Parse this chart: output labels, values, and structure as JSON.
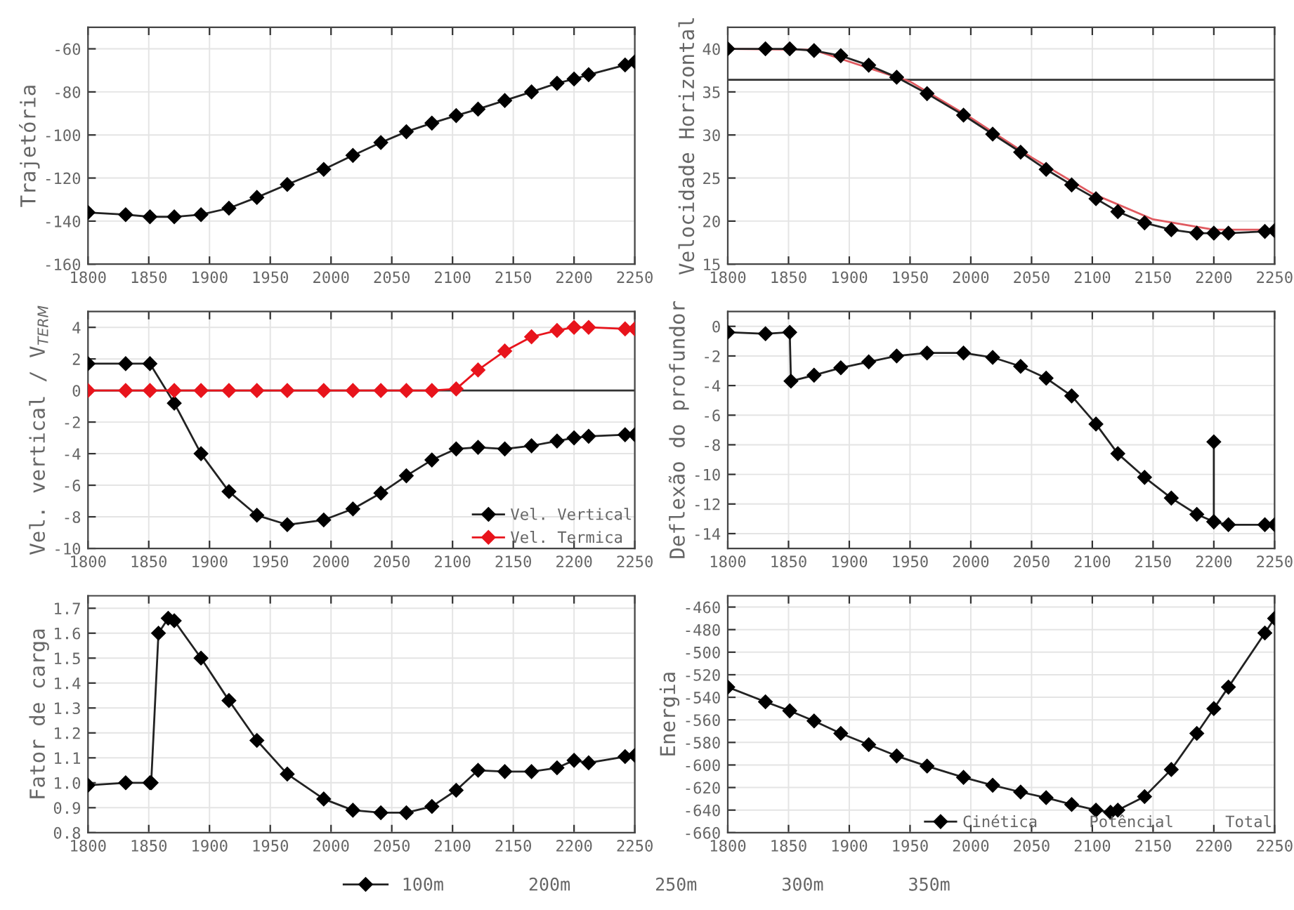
{
  "chart_data": [
    {
      "type": "line",
      "ylabel": "Trajetória",
      "xlim": [
        1800,
        2250
      ],
      "xticks": [
        1800,
        1850,
        1900,
        1950,
        2000,
        2050,
        2100,
        2150,
        2200,
        2250
      ],
      "ylim": [
        -160,
        -50
      ],
      "yticks": [
        -160,
        -140,
        -120,
        -100,
        -80,
        -60
      ],
      "grid": true,
      "legend": false,
      "series": [
        {
          "color": "#222222",
          "marker": "diamond",
          "x": [
            1800,
            1831,
            1851,
            1871,
            1893,
            1916,
            1939,
            1964,
            1994,
            2018,
            2041,
            2062,
            2083,
            2103,
            2121,
            2143,
            2165,
            2186,
            2200,
            2212,
            2242,
            2250
          ],
          "values": [
            -136,
            -137,
            -138,
            -138,
            -137,
            -134,
            -129,
            -123,
            -116,
            -109.5,
            -103.5,
            -98.5,
            -94.5,
            -91,
            -88,
            -84,
            -80,
            -76,
            -74,
            -72,
            -67.5,
            -66
          ]
        }
      ]
    },
    {
      "type": "line",
      "ylabel": "Velocidade Horizontal",
      "xlim": [
        1800,
        2250
      ],
      "xticks": [
        1800,
        1850,
        1900,
        1950,
        2000,
        2050,
        2100,
        2150,
        2200,
        2250
      ],
      "ylim": [
        15,
        42.5
      ],
      "yticks": [
        15,
        20,
        25,
        30,
        35,
        40
      ],
      "grid": true,
      "legend": false,
      "ref_lines": [
        {
          "axis": "y",
          "value": 36.4,
          "color": "#333333"
        }
      ],
      "series": [
        {
          "color": "#e05a60",
          "marker": "none",
          "x": [
            1800,
            1870,
            1950,
            2000,
            2050,
            2100,
            2150,
            2200,
            2250
          ],
          "values": [
            40,
            39.9,
            36.2,
            32,
            27.4,
            23.2,
            20.2,
            19.0,
            19.0
          ]
        },
        {
          "color": "#222222",
          "marker": "diamond",
          "x": [
            1800,
            1831,
            1851,
            1871,
            1893,
            1916,
            1939,
            1964,
            1994,
            2018,
            2041,
            2062,
            2083,
            2103,
            2121,
            2143,
            2165,
            2186,
            2200,
            2212,
            2242,
            2250
          ],
          "values": [
            40,
            40,
            40,
            39.8,
            39.2,
            38.1,
            36.7,
            34.8,
            32.3,
            30.1,
            28,
            26,
            24.2,
            22.6,
            21.1,
            19.8,
            19,
            18.6,
            18.6,
            18.6,
            18.8,
            18.9
          ]
        }
      ]
    },
    {
      "type": "line",
      "ylabel": "Vel. vertical / V$_{TERM}$",
      "xlim": [
        1800,
        2250
      ],
      "xticks": [
        1800,
        1850,
        1900,
        1950,
        2000,
        2050,
        2100,
        2150,
        2200,
        2250
      ],
      "ylim": [
        -10,
        5
      ],
      "yticks": [
        -10,
        -8,
        -6,
        -4,
        -2,
        0,
        2,
        4
      ],
      "grid": true,
      "legend": "bottom right",
      "ref_lines": [
        {
          "axis": "y",
          "value": 0,
          "color": "#333333"
        }
      ],
      "series": [
        {
          "name": "Vel. Vertical",
          "color": "#222222",
          "marker": "diamond",
          "x": [
            1800,
            1831,
            1851,
            1871,
            1893,
            1916,
            1939,
            1964,
            1994,
            2018,
            2041,
            2062,
            2083,
            2103,
            2121,
            2143,
            2165,
            2186,
            2200,
            2212,
            2242,
            2250
          ],
          "values": [
            1.7,
            1.7,
            1.7,
            -0.8,
            -4.0,
            -6.4,
            -7.9,
            -8.5,
            -8.2,
            -7.5,
            -6.5,
            -5.4,
            -4.4,
            -3.7,
            -3.6,
            -3.7,
            -3.5,
            -3.2,
            -3.0,
            -2.9,
            -2.8,
            -2.8
          ]
        },
        {
          "name": "Vel. Termica",
          "color": "#e8141c",
          "marker": "diamond",
          "x": [
            1800,
            1831,
            1851,
            1871,
            1893,
            1916,
            1939,
            1964,
            1994,
            2018,
            2041,
            2062,
            2083,
            2103,
            2121,
            2143,
            2165,
            2186,
            2200,
            2212,
            2242,
            2250
          ],
          "values": [
            0,
            0,
            0,
            0,
            0,
            0,
            0,
            0,
            0,
            0,
            0,
            0,
            0,
            0.1,
            1.3,
            2.5,
            3.4,
            3.8,
            4.0,
            4.0,
            3.9,
            3.9
          ]
        }
      ]
    },
    {
      "type": "line",
      "ylabel": "Deflexão do profundor",
      "xlim": [
        1800,
        2250
      ],
      "xticks": [
        1800,
        1850,
        1900,
        1950,
        2000,
        2050,
        2100,
        2150,
        2200,
        2250
      ],
      "ylim": [
        -15,
        1
      ],
      "yticks": [
        -14,
        -12,
        -10,
        -8,
        -6,
        -4,
        -2,
        0
      ],
      "grid": true,
      "legend": false,
      "series": [
        {
          "color": "#222222",
          "marker": "diamond",
          "x": [
            1800,
            1831,
            1851,
            1852,
            1871,
            1893,
            1916,
            1939,
            1964,
            1994,
            2018,
            2041,
            2062,
            2083,
            2103,
            2121,
            2143,
            2165,
            2186,
            2200,
            2200,
            2200,
            2212,
            2242,
            2250
          ],
          "values": [
            -0.4,
            -0.5,
            -0.4,
            -3.7,
            -3.3,
            -2.8,
            -2.4,
            -2.0,
            -1.8,
            -1.8,
            -2.1,
            -2.7,
            -3.5,
            -4.7,
            -6.6,
            -8.6,
            -10.2,
            -11.6,
            -12.7,
            -13.2,
            -7.8,
            -13.2,
            -13.4,
            -13.4,
            -13.4
          ]
        }
      ]
    },
    {
      "type": "line",
      "ylabel": "Fator de carga",
      "xlim": [
        1800,
        2250
      ],
      "xticks": [
        1800,
        1850,
        1900,
        1950,
        2000,
        2050,
        2100,
        2150,
        2200,
        2250
      ],
      "ylim": [
        0.8,
        1.75
      ],
      "yticks": [
        0.8,
        0.9,
        {
          "value": 1.0,
          "label": "1.0"
        },
        1.1,
        1.2,
        1.3,
        1.4,
        1.5,
        1.6,
        1.7
      ],
      "grid": true,
      "legend": "bottom",
      "annotations": [
        "200m",
        "250m",
        "300m",
        "350m"
      ],
      "series": [
        {
          "name": "100m",
          "color": "#222222",
          "marker": "diamond",
          "x": [
            1800,
            1831,
            1851,
            1852,
            1858,
            1866,
            1871,
            1893,
            1916,
            1939,
            1964,
            1994,
            2018,
            2041,
            2062,
            2083,
            2103,
            2121,
            2143,
            2165,
            2186,
            2200,
            2212,
            2242,
            2250
          ],
          "values": [
            0.99,
            1.0,
            1.0,
            1.0,
            1.6,
            1.66,
            1.65,
            1.5,
            1.33,
            1.17,
            1.035,
            0.935,
            0.89,
            0.88,
            0.88,
            0.905,
            0.97,
            1.05,
            1.045,
            1.045,
            1.06,
            1.09,
            1.08,
            1.105,
            1.11
          ]
        }
      ]
    },
    {
      "type": "line",
      "ylabel": "Energia",
      "xlim": [
        1800,
        2250
      ],
      "xticks": [
        1800,
        1850,
        1900,
        1950,
        2000,
        2050,
        2100,
        2150,
        2200,
        2250
      ],
      "ylim": [
        -660,
        -450
      ],
      "yticks": [
        -660,
        -640,
        -620,
        -600,
        -580,
        -560,
        -540,
        -520,
        -500,
        -480,
        -460
      ],
      "grid": true,
      "legend": "bottom right",
      "annotations": [
        "Potêncial",
        "Total"
      ],
      "series": [
        {
          "name": "Cinética",
          "color": "#222222",
          "marker": "diamond",
          "x": [
            1800,
            1831,
            1851,
            1871,
            1893,
            1916,
            1939,
            1964,
            1994,
            2018,
            2041,
            2062,
            2083,
            2103,
            2115,
            2121,
            2143,
            2165,
            2186,
            2200,
            2212,
            2242,
            2250
          ],
          "values": [
            -531,
            -544,
            -552,
            -561,
            -572,
            -582,
            -592,
            -601,
            -611,
            -618,
            -624,
            -629,
            -635,
            -640,
            -642,
            -640,
            -628,
            -604,
            -572,
            -550,
            -531,
            -483,
            -470
          ]
        }
      ]
    }
  ]
}
